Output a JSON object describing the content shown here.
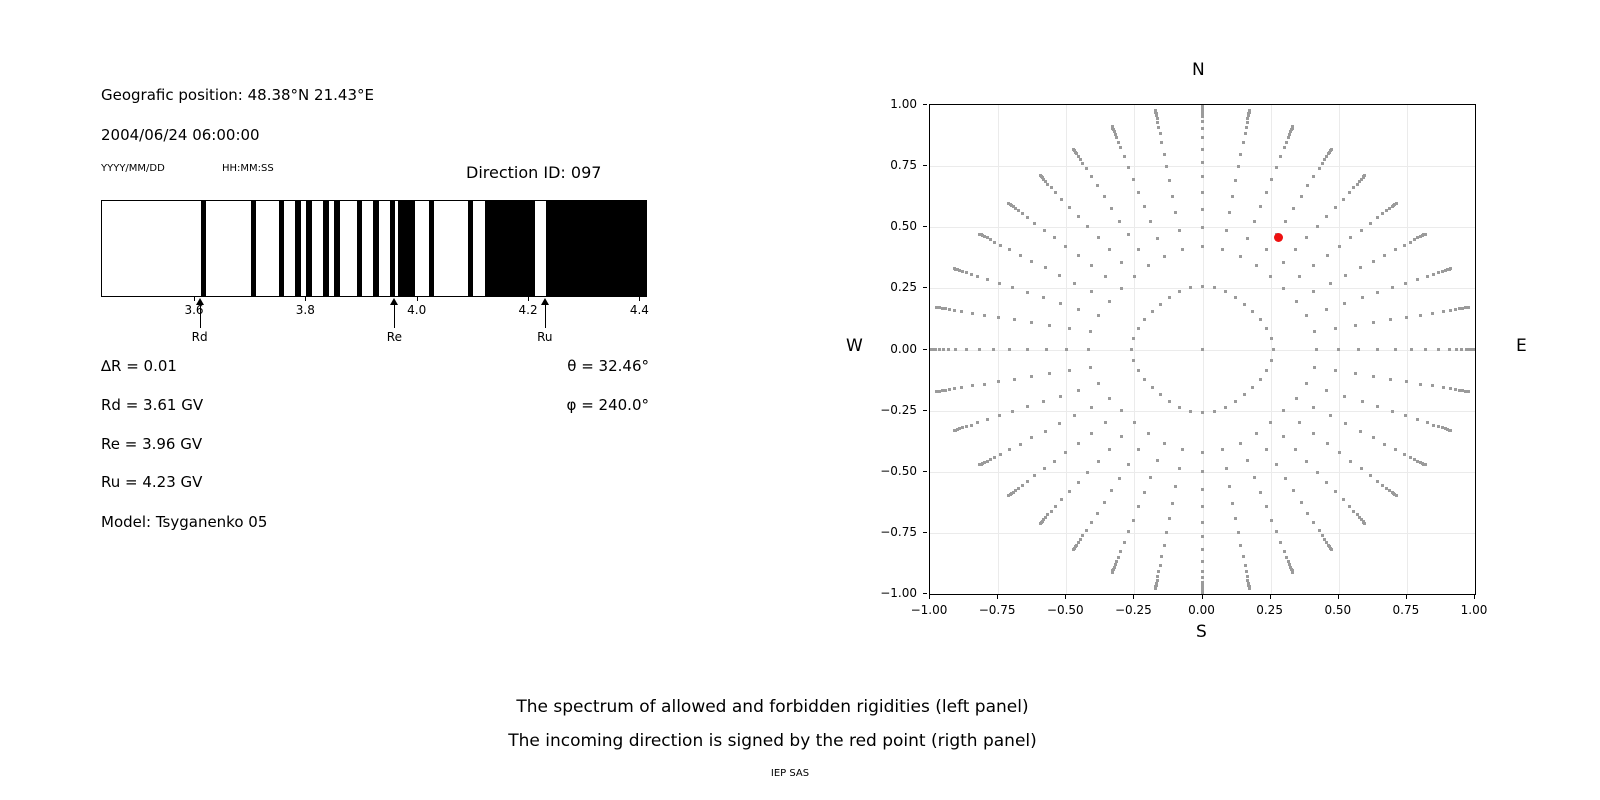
{
  "header": {
    "geographic_position": "Geografic position: 48.38°N 21.43°E",
    "datetime": "2004/06/24 06:00:00",
    "date_format_label": "YYYY/MM/DD",
    "time_format_label": "HH:MM:SS",
    "direction_id": "Direction ID: 097"
  },
  "left_info": {
    "delta_r": "∆R = 0.01",
    "rd": "Rd = 3.61 GV",
    "re": "Re = 3.96 GV",
    "ru": "Ru = 4.23 GV",
    "model": "Model: Tsyganenko 05",
    "theta": "θ = 32.46°",
    "phi": "φ = 240.0°"
  },
  "caption": {
    "line1": "The spectrum of allowed and forbidden rigidities (left panel)",
    "line2": "The incoming direction is signed by the red point (rigth panel)",
    "credit": "IEP SAS"
  },
  "colors": {
    "bar": "#000000",
    "grid": "#ebebeb",
    "dot": "#9b9b9b",
    "red_point": "#ee1111"
  },
  "chart_data": [
    {
      "type": "bar",
      "title": "Spectrum of allowed (black) and forbidden (white) rigidities",
      "xlim": [
        3.433,
        4.41
      ],
      "x_ticks": [
        3.6,
        3.8,
        4.0,
        4.2,
        4.4
      ],
      "x_tick_labels": [
        "3.6",
        "3.8",
        "4.0",
        "4.2",
        "4.4"
      ],
      "allowed_bands_gv": [
        [
          3.61,
          3.62
        ],
        [
          3.7,
          3.71
        ],
        [
          3.75,
          3.76
        ],
        [
          3.78,
          3.79
        ],
        [
          3.8,
          3.81
        ],
        [
          3.83,
          3.84
        ],
        [
          3.85,
          3.86
        ],
        [
          3.89,
          3.9
        ],
        [
          3.92,
          3.93
        ],
        [
          3.95,
          3.96
        ],
        [
          3.965,
          3.995
        ],
        [
          4.02,
          4.03
        ],
        [
          4.09,
          4.1
        ],
        [
          4.12,
          4.21
        ],
        [
          4.23,
          4.41
        ]
      ],
      "arrows": [
        {
          "label": "Rd",
          "gv": 3.61
        },
        {
          "label": "Re",
          "gv": 3.96
        },
        {
          "label": "Ru",
          "gv": 4.23
        }
      ],
      "delta_r_gv": 0.01,
      "rd_gv": 3.61,
      "re_gv": 3.96,
      "ru_gv": 4.23,
      "model": "Tsyganenko 05"
    },
    {
      "type": "scatter",
      "title_top": "N",
      "label_bottom": "S",
      "label_left": "W",
      "label_right": "E",
      "xlim": [
        -1.0,
        1.0
      ],
      "ylim": [
        -1.0,
        1.0
      ],
      "ticks": [
        -1.0,
        -0.75,
        -0.5,
        -0.25,
        0.0,
        0.25,
        0.5,
        0.75,
        1.0
      ],
      "tick_labels": [
        "−1.00",
        "−0.75",
        "−0.50",
        "−0.25",
        "0.00",
        "0.25",
        "0.50",
        "0.75",
        "1.00"
      ],
      "grid": true,
      "azimuth_step_deg": 10,
      "ray_radii": [
        0.259,
        0.42,
        0.5,
        0.574,
        0.643,
        0.707,
        0.766,
        0.819,
        0.866,
        0.906,
        0.932,
        0.952,
        0.967,
        0.979,
        0.988,
        0.994,
        1.0
      ],
      "diagonal_tip_shrink": 0.075,
      "center_dot": true,
      "red_point": {
        "x": 0.28,
        "y": 0.46,
        "theta_deg": 32.46,
        "phi_deg": 240.0
      }
    }
  ]
}
